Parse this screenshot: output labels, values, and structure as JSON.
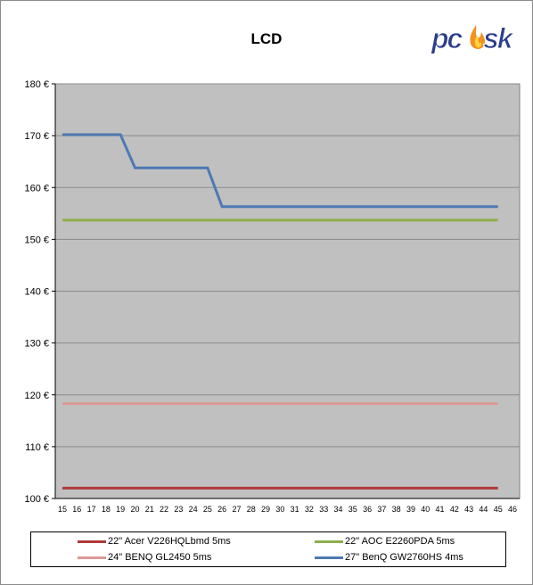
{
  "logo_text": "pcosk",
  "chart_data": {
    "type": "line",
    "title": "LCD",
    "xlabel": "",
    "ylabel": "",
    "x": [
      15,
      16,
      17,
      18,
      19,
      20,
      21,
      22,
      23,
      24,
      25,
      26,
      27,
      28,
      29,
      30,
      31,
      32,
      33,
      34,
      35,
      36,
      37,
      38,
      39,
      40,
      41,
      42,
      43,
      44,
      45,
      46
    ],
    "xlim": [
      15,
      46
    ],
    "ylim": [
      100,
      180
    ],
    "yticks": [
      100,
      110,
      120,
      130,
      140,
      150,
      160,
      170,
      180
    ],
    "ytick_labels": [
      "100 €",
      "110 €",
      "120 €",
      "130 €",
      "140 €",
      "150 €",
      "160 €",
      "170 €",
      "180 €"
    ],
    "grid": true,
    "legend_position": "bottom",
    "series": [
      {
        "name": "22\" Acer V226HQLbmd 5ms",
        "color": "#b03a3a",
        "points": [
          [
            15,
            102
          ],
          [
            45,
            102
          ]
        ]
      },
      {
        "name": "22\" AOC E2260PDA 5ms",
        "color": "#8fae4c",
        "points": [
          [
            15,
            153.7
          ],
          [
            45,
            153.7
          ]
        ]
      },
      {
        "name": "24\" BENQ GL2450 5ms",
        "color": "#dc9a96",
        "points": [
          [
            15,
            118.3
          ],
          [
            45,
            118.3
          ]
        ]
      },
      {
        "name": "27\" BenQ GW2760HS 4ms",
        "color": "#4d79b3",
        "points": [
          [
            15,
            170.2
          ],
          [
            19,
            170.2
          ],
          [
            20,
            163.8
          ],
          [
            25,
            163.8
          ],
          [
            26,
            156.3
          ],
          [
            45,
            156.3
          ]
        ]
      }
    ]
  }
}
